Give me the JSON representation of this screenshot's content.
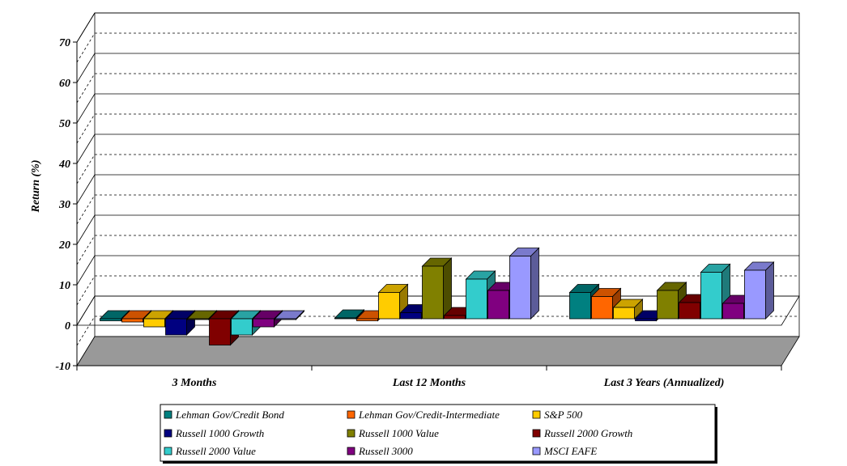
{
  "chart_data": {
    "type": "bar",
    "title": "",
    "xlabel": "",
    "ylabel": "Return (%)",
    "ylim": [
      -10,
      70
    ],
    "yticks": [
      "-10",
      "0",
      "10",
      "20",
      "30",
      "40",
      "50",
      "60",
      "70"
    ],
    "grid": true,
    "three_d": true,
    "legend_position": "bottom",
    "categories": [
      "3 Months",
      "Last 12 Months",
      "Last 3 Years (Annualized)"
    ],
    "series": [
      {
        "name": "Lehman Gov/Credit Bond",
        "color": "#008080",
        "values": [
          -0.5,
          0.2,
          6.5
        ]
      },
      {
        "name": "Lehman Gov/Credit-Intermediate",
        "color": "#FF6600",
        "values": [
          -0.8,
          -0.5,
          5.5
        ]
      },
      {
        "name": "S&P 500",
        "color": "#FFCC00",
        "values": [
          -2,
          6.5,
          2.8
        ]
      },
      {
        "name": "Russell 1000 Growth",
        "color": "#000080",
        "values": [
          -4,
          1.5,
          -0.5
        ]
      },
      {
        "name": "Russell 1000 Value",
        "color": "#808000",
        "values": [
          -0.2,
          13,
          7
        ]
      },
      {
        "name": "Russell 2000 Growth",
        "color": "#800000",
        "values": [
          -6.5,
          0.8,
          4
        ]
      },
      {
        "name": "Russell 2000 Value",
        "color": "#33CCCC",
        "values": [
          -4,
          9.8,
          11.5
        ]
      },
      {
        "name": "Russell 3000",
        "color": "#800080",
        "values": [
          -2,
          7,
          3.8
        ]
      },
      {
        "name": "MSCI EAFE",
        "color": "#9999FF",
        "values": [
          -0.2,
          15.5,
          12
        ]
      }
    ]
  }
}
